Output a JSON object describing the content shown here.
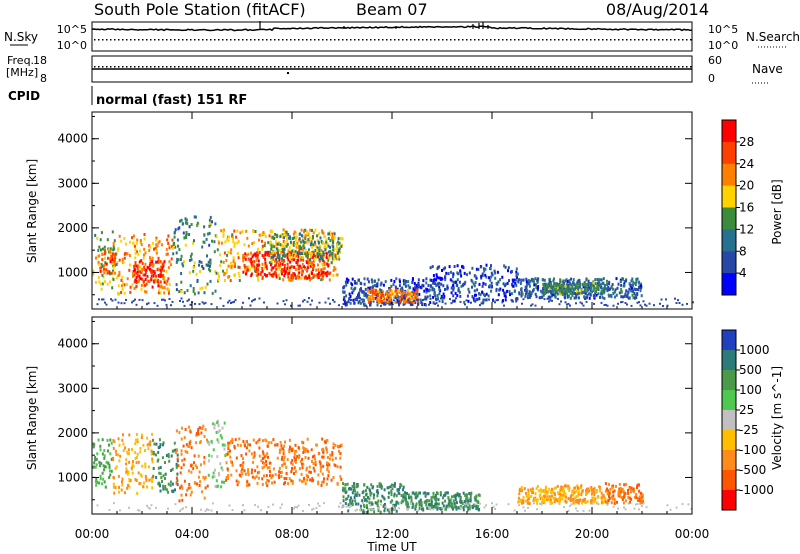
{
  "header": {
    "station": "South Pole Station (fitACF)",
    "beam": "Beam 07",
    "date": "08/Aug/2014"
  },
  "top_panels": {
    "nsky_label": "N.Sky",
    "nsearch_label": "N.Search",
    "freq_label_1": "Freq.",
    "freq_label_2": "[MHz]",
    "nave_label": "Nave",
    "cpid_label": "CPID",
    "cpid_value": "normal (fast) 151 RF",
    "noise_left_ticks": [
      "10^5",
      "10^0"
    ],
    "noise_right_ticks": [
      "10^5",
      "10^0"
    ],
    "freq_ticks": [
      "18",
      "8"
    ],
    "nave_ticks": [
      "60",
      "0"
    ]
  },
  "power_colorbar": {
    "label": "Power [dB]",
    "ticks": [
      "28",
      "24",
      "20",
      "16",
      "12",
      "8",
      "4"
    ],
    "colors": [
      "#ff0000",
      "#ff4000",
      "#ff8000",
      "#ffd200",
      "#3c8c3c",
      "#287090",
      "#2848a8",
      "#0000ff"
    ]
  },
  "velocity_colorbar": {
    "label": "Velocity [m s^-1]",
    "ticks": [
      "1000",
      "500",
      "100",
      "25",
      "-25",
      "-100",
      "-500",
      "-1000"
    ],
    "colors": [
      "#2040c0",
      "#2d7a7a",
      "#4a9a4a",
      "#4ec84e",
      "#c0c0c0",
      "#ffbf00",
      "#ff8c1a",
      "#ff5500",
      "#ff0000"
    ]
  },
  "chart_data": {
    "type": "heatmap",
    "x_tick_labels": [
      "00:00",
      "04:00",
      "08:00",
      "12:00",
      "16:00",
      "20:00",
      "00:00"
    ],
    "xlabel": "Time UT",
    "xlim_hours": [
      0,
      24
    ],
    "y_tick_labels": [
      "1000",
      "2000",
      "3000",
      "4000"
    ],
    "ylabel": "Slant Range [km]",
    "ylim_km": [
      180,
      4600
    ],
    "power_clusters": [
      {
        "t": [
          0.0,
          1.0
        ],
        "r": [
          650,
          1950
        ],
        "p": 16
      },
      {
        "t": [
          0.3,
          0.9
        ],
        "r": [
          1000,
          1550
        ],
        "p": 24
      },
      {
        "t": [
          1.0,
          3.2
        ],
        "r": [
          550,
          1900
        ],
        "p": 22
      },
      {
        "t": [
          1.6,
          2.9
        ],
        "r": [
          700,
          1300
        ],
        "p": 28
      },
      {
        "t": [
          3.2,
          5.0
        ],
        "r": [
          550,
          2300
        ],
        "p": 12
      },
      {
        "t": [
          5.0,
          9.8
        ],
        "r": [
          850,
          2000
        ],
        "p": 20
      },
      {
        "t": [
          6.0,
          9.5
        ],
        "r": [
          900,
          1500
        ],
        "p": 28
      },
      {
        "t": [
          7.0,
          10.0
        ],
        "r": [
          1300,
          1900
        ],
        "p": 14
      },
      {
        "t": [
          10.0,
          13.5
        ],
        "r": [
          300,
          900
        ],
        "p": 6
      },
      {
        "t": [
          11.0,
          13.0
        ],
        "r": [
          350,
          650
        ],
        "p": 22
      },
      {
        "t": [
          13.5,
          17.0
        ],
        "r": [
          350,
          1200
        ],
        "p": 6
      },
      {
        "t": [
          17.0,
          22.0
        ],
        "r": [
          450,
          900
        ],
        "p": 8
      },
      {
        "t": [
          18.0,
          20.5
        ],
        "r": [
          550,
          800
        ],
        "p": 12
      }
    ],
    "velocity_clusters": [
      {
        "t": [
          0.0,
          0.8
        ],
        "r": [
          800,
          1900
        ],
        "v": 100
      },
      {
        "t": [
          0.8,
          2.4
        ],
        "r": [
          650,
          2000
        ],
        "v": -100
      },
      {
        "t": [
          2.4,
          3.4
        ],
        "r": [
          700,
          1900
        ],
        "v": 500
      },
      {
        "t": [
          3.3,
          4.6
        ],
        "r": [
          500,
          2200
        ],
        "v": -500
      },
      {
        "t": [
          4.6,
          5.3
        ],
        "r": [
          800,
          2300
        ],
        "v": 25
      },
      {
        "t": [
          5.3,
          10.0
        ],
        "r": [
          850,
          1900
        ],
        "v": -500
      },
      {
        "t": [
          10.0,
          12.5
        ],
        "r": [
          250,
          900
        ],
        "v": 500
      },
      {
        "t": [
          12.5,
          15.5
        ],
        "r": [
          300,
          700
        ],
        "v": 500
      },
      {
        "t": [
          17.0,
          20.5
        ],
        "r": [
          450,
          850
        ],
        "v": -100
      },
      {
        "t": [
          20.5,
          22.0
        ],
        "r": [
          450,
          900
        ],
        "v": -500
      }
    ]
  }
}
